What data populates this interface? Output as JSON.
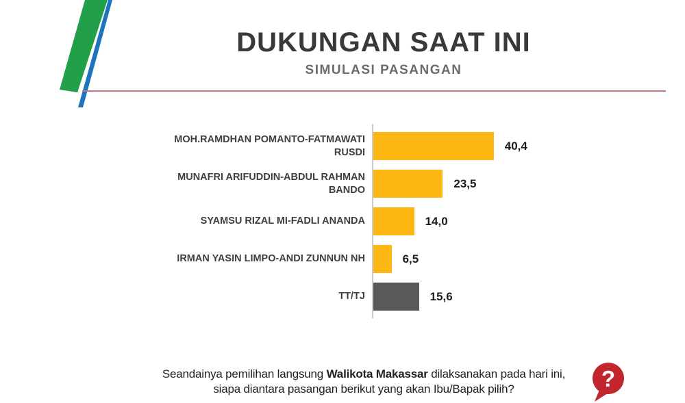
{
  "header": {
    "title": "DUKUNGAN SAAT INI",
    "subtitle": "SIMULASI PASANGAN"
  },
  "colors": {
    "bar_yellow": "#FDB813",
    "bar_gray": "#595959",
    "stripe_green": "#21A049",
    "stripe_blue": "#1E73BE",
    "divider_red": "#BF7B7E",
    "question_red": "#C1272D"
  },
  "chart_data": {
    "type": "bar",
    "orientation": "horizontal",
    "title": "DUKUNGAN SAAT INI",
    "subtitle": "SIMULASI PASANGAN",
    "categories": [
      "MOH.RAMDHAN POMANTO-FATMAWATI RUSDI",
      "MUNAFRI ARIFUDDIN-ABDUL RAHMAN BANDO",
      "SYAMSU RIZAL MI-FADLI ANANDA",
      "IRMAN YASIN LIMPO-ANDI ZUNNUN NH",
      "TT/TJ"
    ],
    "values": [
      40.4,
      23.5,
      14.0,
      6.5,
      15.6
    ],
    "value_labels": [
      "40,4",
      "23,5",
      "14,0",
      "6,5",
      "15,6"
    ],
    "bar_colors": [
      "#FDB813",
      "#FDB813",
      "#FDB813",
      "#FDB813",
      "#595959"
    ],
    "xlabel": "",
    "ylabel": "",
    "xlim": [
      0,
      45
    ],
    "grid": false,
    "legend": false
  },
  "question": {
    "line1_prefix": "Seandainya pemilihan langsung ",
    "line1_bold": "Walikota Makassar",
    "line1_suffix": " dilaksanakan pada hari ini,",
    "line2": "siapa diantara pasangan berikut yang akan Ibu/Bapak pilih?"
  },
  "icons": {
    "question_glyph": "?"
  }
}
